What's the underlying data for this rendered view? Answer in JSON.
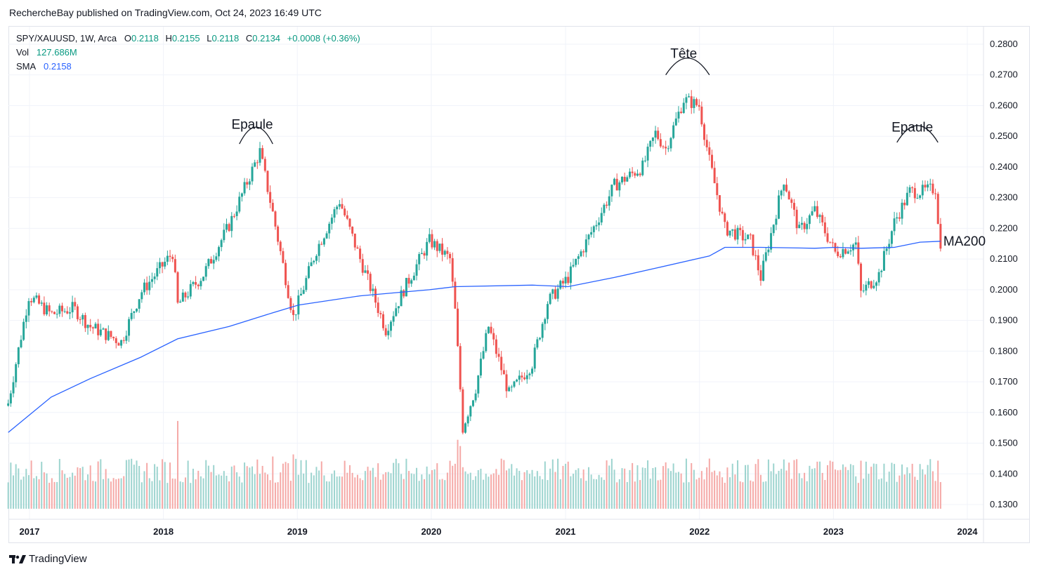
{
  "header": {
    "publisher_line": "RechercheBay published on TradingView.com, Oct 24, 2023 16:49 UTC"
  },
  "legend": {
    "symbol": "SPY/XAUUSD, 1W, Arca",
    "open_label": "O",
    "open": "0.2118",
    "high_label": "H",
    "high": "0.2155",
    "low_label": "L",
    "low": "0.2118",
    "close_label": "C",
    "close": "0.2134",
    "change": "+0.0008 (+0.36%)",
    "vol_label": "Vol",
    "vol": "127.686M",
    "sma_label": "SMA",
    "sma": "0.2158"
  },
  "footer": {
    "logo_text": "TradingView"
  },
  "colors": {
    "up": "#26a69a",
    "down": "#ef5350",
    "sma": "#2962ff",
    "grid": "#f0f3fa",
    "vol_up": "#9dd4cf",
    "vol_down": "#f5a9a7"
  },
  "chart_data": {
    "type": "candlestick",
    "title": "SPY/XAUUSD, 1W, Arca",
    "ylim": [
      0.1255,
      0.2855
    ],
    "y_ticks": [
      "0.2800",
      "0.2700",
      "0.2600",
      "0.2500",
      "0.2400",
      "0.2300",
      "0.2200",
      "0.2100",
      "0.2000",
      "0.1900",
      "0.1800",
      "0.1700",
      "0.1600",
      "0.1500",
      "0.1400",
      "0.1300"
    ],
    "x_ticks": [
      "2017",
      "2018",
      "2019",
      "2020",
      "2021",
      "2022",
      "2023",
      "2024"
    ],
    "grid": true,
    "price_anchors": [
      [
        "2016-11-04",
        0.163
      ],
      [
        "2016-12-30",
        0.198
      ],
      [
        "2017-03-01",
        0.192
      ],
      [
        "2017-05-01",
        0.194
      ],
      [
        "2017-06-15",
        0.188
      ],
      [
        "2017-09-08",
        0.183
      ],
      [
        "2017-10-31",
        0.199
      ],
      [
        "2018-01-26",
        0.212
      ],
      [
        "2018-02-09",
        0.195
      ],
      [
        "2018-04-20",
        0.205
      ],
      [
        "2018-06-29",
        0.221
      ],
      [
        "2018-09-21",
        0.245
      ],
      [
        "2018-10-26",
        0.225
      ],
      [
        "2018-12-21",
        0.191
      ],
      [
        "2019-02-22",
        0.213
      ],
      [
        "2019-04-26",
        0.229
      ],
      [
        "2019-06-21",
        0.21
      ],
      [
        "2019-08-30",
        0.187
      ],
      [
        "2019-10-18",
        0.2
      ],
      [
        "2019-12-27",
        0.216
      ],
      [
        "2020-02-21",
        0.21
      ],
      [
        "2020-03-06",
        0.193
      ],
      [
        "2020-03-27",
        0.155
      ],
      [
        "2020-05-01",
        0.168
      ],
      [
        "2020-06-05",
        0.188
      ],
      [
        "2020-07-31",
        0.166
      ],
      [
        "2020-10-02",
        0.176
      ],
      [
        "2020-11-13",
        0.196
      ],
      [
        "2021-01-08",
        0.204
      ],
      [
        "2021-03-26",
        0.222
      ],
      [
        "2021-05-14",
        0.234
      ],
      [
        "2021-07-30",
        0.24
      ],
      [
        "2021-09-03",
        0.251
      ],
      [
        "2021-10-01",
        0.246
      ],
      [
        "2021-11-19",
        0.262
      ],
      [
        "2021-12-31",
        0.26
      ],
      [
        "2022-01-28",
        0.242
      ],
      [
        "2022-03-11",
        0.22
      ],
      [
        "2022-05-20",
        0.216
      ],
      [
        "2022-06-17",
        0.204
      ],
      [
        "2022-08-19",
        0.236
      ],
      [
        "2022-09-30",
        0.219
      ],
      [
        "2022-11-11",
        0.226
      ],
      [
        "2023-01-06",
        0.212
      ],
      [
        "2023-03-03",
        0.215
      ],
      [
        "2023-03-17",
        0.199
      ],
      [
        "2023-05-05",
        0.205
      ],
      [
        "2023-06-16",
        0.222
      ],
      [
        "2023-07-28",
        0.232
      ],
      [
        "2023-09-01",
        0.232
      ],
      [
        "2023-10-06",
        0.233
      ],
      [
        "2023-10-20",
        0.2134
      ]
    ],
    "sma_anchors": [
      [
        "2016-11-04",
        0.1535
      ],
      [
        "2017-03-01",
        0.165
      ],
      [
        "2017-06-15",
        0.171
      ],
      [
        "2017-10-31",
        0.178
      ],
      [
        "2018-02-09",
        0.184
      ],
      [
        "2018-06-29",
        0.188
      ],
      [
        "2018-10-26",
        0.1925
      ],
      [
        "2019-01-04",
        0.195
      ],
      [
        "2019-06-21",
        0.198
      ],
      [
        "2019-12-27",
        0.2
      ],
      [
        "2020-03-06",
        0.201
      ],
      [
        "2020-10-02",
        0.2015
      ],
      [
        "2021-01-08",
        0.201
      ],
      [
        "2021-05-14",
        0.204
      ],
      [
        "2021-09-03",
        0.207
      ],
      [
        "2022-01-28",
        0.211
      ],
      [
        "2022-03-11",
        0.2138
      ],
      [
        "2022-06-17",
        0.2138
      ],
      [
        "2022-11-11",
        0.2135
      ],
      [
        "2023-01-06",
        0.2138
      ],
      [
        "2023-03-17",
        0.2135
      ],
      [
        "2023-06-16",
        0.2138
      ],
      [
        "2023-08-25",
        0.2155
      ],
      [
        "2023-10-20",
        0.2158
      ]
    ],
    "volume": {
      "base": 130000000,
      "max": 470000000,
      "last": "127.686M",
      "spikes": [
        [
          "2018-02-09",
          420000000
        ],
        [
          "2018-10-26",
          250000000
        ],
        [
          "2018-12-21",
          260000000
        ],
        [
          "2020-03-13",
          330000000
        ],
        [
          "2020-03-20",
          300000000
        ],
        [
          "2022-01-28",
          240000000
        ],
        [
          "2022-05-13",
          210000000
        ],
        [
          "2023-03-17",
          230000000
        ]
      ]
    },
    "annotations": [
      {
        "label": "Epaule",
        "x": "2018-08-31",
        "y": 0.2525,
        "arc_x0": "2018-07-27",
        "arc_x1": "2018-10-26",
        "arc_y": 0.2475
      },
      {
        "label": "Tête",
        "x": "2021-11-19",
        "y": 0.2755,
        "arc_x0": "2021-10-01",
        "arc_x1": "2022-01-28",
        "arc_y": 0.27
      },
      {
        "label": "Epaule",
        "x": "2023-08-04",
        "y": 0.2515,
        "arc_x0": "2023-06-23",
        "arc_x1": "2023-10-13",
        "arc_y": 0.248
      }
    ],
    "sma_label": "MA200"
  }
}
